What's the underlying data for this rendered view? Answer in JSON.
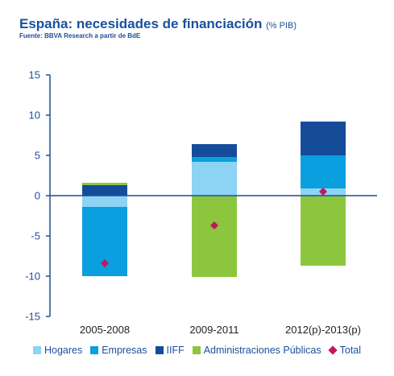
{
  "header": {
    "title": "España: necesidades de financiación",
    "title_suffix": "(% PIB)",
    "source": "Fuente: BBVA Research a partir de  BdE"
  },
  "colors": {
    "Hogares": "#8dd3f3",
    "Empresas": "#0a9fdf",
    "IIFF": "#154c9a",
    "Administraciones Públicas": "#8cc63f",
    "Total": "#c2185b",
    "axis": "#1a4f9c"
  },
  "chart_data": {
    "type": "bar",
    "stacked": true,
    "categories": [
      "2005-2008",
      "2009-2011",
      "2012(p)-2013(p)"
    ],
    "series": [
      {
        "name": "Hogares",
        "values": [
          -1.4,
          4.2,
          0.9
        ]
      },
      {
        "name": "Empresas",
        "values": [
          -8.6,
          0.6,
          4.1
        ]
      },
      {
        "name": "IIFF",
        "values": [
          1.3,
          1.6,
          4.2
        ]
      },
      {
        "name": "Administraciones Públicas",
        "values": [
          0.3,
          -10.1,
          -8.7
        ]
      }
    ],
    "total": {
      "name": "Total",
      "values": [
        -8.4,
        -3.7,
        0.5
      ]
    },
    "ylim": [
      -15,
      15
    ],
    "yticks": [
      "15",
      "10",
      "5",
      "0",
      "-5",
      "-10",
      "-15"
    ],
    "xlabel": "",
    "ylabel": "",
    "legend_position": "bottom",
    "grid": false
  }
}
